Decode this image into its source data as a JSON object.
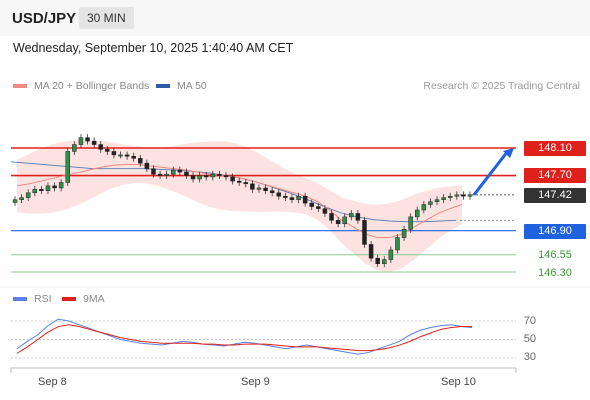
{
  "header": {
    "symbol": "USD/JPY",
    "timeframe": "30 MIN",
    "datetime": "Wednesday, September 10, 2025 1:40:40 AM CET"
  },
  "legend": {
    "ma20_label": "MA 20 + Bollinger Bands",
    "ma20_color": "#f08a85",
    "ma50_label": "MA 50",
    "ma50_color": "#2b5ea7",
    "credit": "Research © 2025 Trading Central"
  },
  "levels": {
    "resistance_2": {
      "label": "148.10",
      "color": "#e0201b"
    },
    "resistance_1": {
      "label": "147.70",
      "color": "#e0201b"
    },
    "current": {
      "label": "147.42",
      "color": "#333333"
    },
    "pivot": {
      "label": "146.90",
      "color": "#1f62e0"
    },
    "support_1": {
      "label": "146.55",
      "color": "#3a9a3a"
    },
    "support_2": {
      "label": "146.30",
      "color": "#3a9a3a"
    }
  },
  "rsi_panel": {
    "rsi_label": "RSI",
    "rsi_color": "#5b7fe6",
    "ma_label": "9MA",
    "ma_color": "#e0201b",
    "levels": [
      "70",
      "50",
      "30"
    ]
  },
  "x_axis": {
    "dates": [
      "Sep 8",
      "Sep 9",
      "Sep 10"
    ]
  },
  "chart_data": {
    "type": "candlestick",
    "title": "USD/JPY 30 MIN",
    "x_ticks": [
      "Sep 8",
      "Sep 9",
      "Sep 10"
    ],
    "ylim": [
      146.0,
      148.5
    ],
    "horizontal_levels": [
      148.1,
      147.7,
      147.42,
      146.9,
      146.55,
      146.3
    ],
    "close_series": [
      147.35,
      147.38,
      147.45,
      147.5,
      147.48,
      147.55,
      147.52,
      147.6,
      148.05,
      148.15,
      148.25,
      148.2,
      148.15,
      148.08,
      148.05,
      148.0,
      148.0,
      147.98,
      147.95,
      147.88,
      147.8,
      147.72,
      147.7,
      147.72,
      147.78,
      147.75,
      147.7,
      147.65,
      147.7,
      147.68,
      147.72,
      147.7,
      147.68,
      147.62,
      147.6,
      147.58,
      147.5,
      147.52,
      147.48,
      147.45,
      147.4,
      147.38,
      147.35,
      147.4,
      147.3,
      147.25,
      147.22,
      147.15,
      147.05,
      147.0,
      147.1,
      147.15,
      147.05,
      146.7,
      146.5,
      146.42,
      146.48,
      146.62,
      146.8,
      146.92,
      147.1,
      147.2,
      147.28,
      147.32,
      147.35,
      147.38,
      147.4,
      147.42,
      147.4,
      147.42
    ],
    "ma20_series": [
      147.55,
      147.58,
      147.62,
      147.66,
      147.7,
      147.74,
      147.78,
      147.82,
      147.85,
      147.86,
      147.86,
      147.84,
      147.82,
      147.8,
      147.78,
      147.75,
      147.72,
      147.7,
      147.68,
      147.65,
      147.6,
      147.55,
      147.5,
      147.45,
      147.4,
      147.32,
      147.2,
      147.05,
      146.95,
      146.85,
      146.8,
      146.8,
      146.85,
      146.95,
      147.05,
      147.15,
      147.22,
      147.28
    ],
    "ma50_series": [
      147.9,
      147.88,
      147.86,
      147.84,
      147.82,
      147.8,
      147.8,
      147.8,
      147.8,
      147.79,
      147.78,
      147.76,
      147.74,
      147.7,
      147.66,
      147.6,
      147.52,
      147.44,
      147.35,
      147.25,
      147.16,
      147.1,
      147.06,
      147.04,
      147.03,
      147.03,
      147.04,
      147.05
    ],
    "rsi_series": [
      40,
      48,
      55,
      65,
      72,
      70,
      66,
      62,
      58,
      54,
      50,
      48,
      46,
      45,
      44,
      46,
      48,
      47,
      45,
      44,
      43,
      45,
      47,
      46,
      44,
      42,
      40,
      42,
      44,
      42,
      40,
      38,
      36,
      34,
      36,
      40,
      44,
      48,
      55,
      60,
      63,
      65,
      66,
      64,
      63
    ],
    "rsi_ma_series": [
      35,
      42,
      50,
      58,
      64,
      66,
      64,
      61,
      58,
      55,
      52,
      50,
      48,
      47,
      46,
      46,
      46,
      46,
      45,
      45,
      44,
      44,
      45,
      45,
      45,
      44,
      43,
      42,
      42,
      42,
      41,
      40,
      39,
      38,
      38,
      39,
      41,
      44,
      48,
      53,
      57,
      61,
      63,
      64,
      64
    ]
  }
}
